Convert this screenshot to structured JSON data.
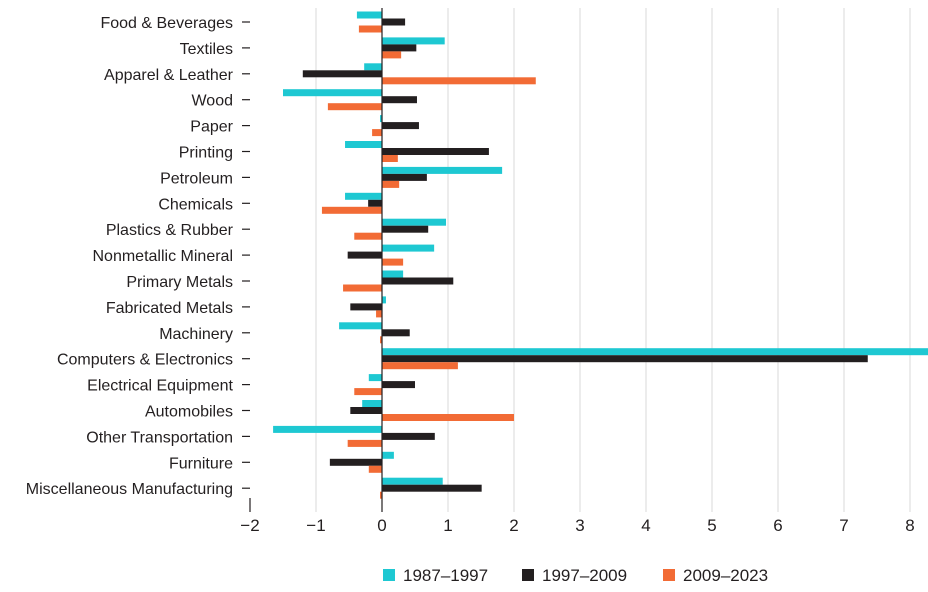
{
  "chart_data": {
    "type": "bar",
    "orientation": "horizontal",
    "title": "",
    "xlabel": "",
    "ylabel": "",
    "xlim": [
      -2,
      8.26
    ],
    "xticks": [
      "−2",
      "−1",
      "0",
      "1",
      "2",
      "3",
      "4",
      "5",
      "6",
      "7",
      "8"
    ],
    "grid": "vertical",
    "legend_position": "bottom",
    "categories": [
      "Food & Beverages",
      "Textiles",
      "Apparel & Leather",
      "Wood",
      "Paper",
      "Printing",
      "Petroleum",
      "Chemicals",
      "Plastics & Rubber",
      "Nonmetallic Mineral",
      "Primary Metals",
      "Fabricated Metals",
      "Machinery",
      "Computers & Electronics",
      "Electrical Equipment",
      "Automobiles",
      "Other Transportation",
      "Furniture",
      "Miscellaneous Manufacturing"
    ],
    "series": [
      {
        "name": "1987–1997",
        "color": "#1ec8d2",
        "values": [
          -0.38,
          0.95,
          -0.27,
          -1.5,
          -0.03,
          -0.56,
          1.82,
          -0.56,
          0.97,
          0.79,
          0.32,
          0.06,
          -0.65,
          8.3,
          -0.2,
          -0.3,
          -1.65,
          0.18,
          0.92
        ]
      },
      {
        "name": "1997–2009",
        "color": "#231f20",
        "values": [
          0.35,
          0.52,
          -1.2,
          0.53,
          0.56,
          1.62,
          0.68,
          -0.21,
          0.7,
          -0.52,
          1.08,
          -0.48,
          0.42,
          7.36,
          0.5,
          -0.48,
          0.8,
          -0.79,
          1.51
        ]
      },
      {
        "name": "2009–2023",
        "color": "#f26b35",
        "values": [
          -0.35,
          0.29,
          2.33,
          -0.82,
          -0.15,
          0.24,
          0.26,
          -0.91,
          -0.42,
          0.32,
          -0.59,
          -0.09,
          -0.03,
          1.15,
          -0.42,
          2.0,
          -0.52,
          -0.2,
          -0.03
        ]
      }
    ]
  }
}
